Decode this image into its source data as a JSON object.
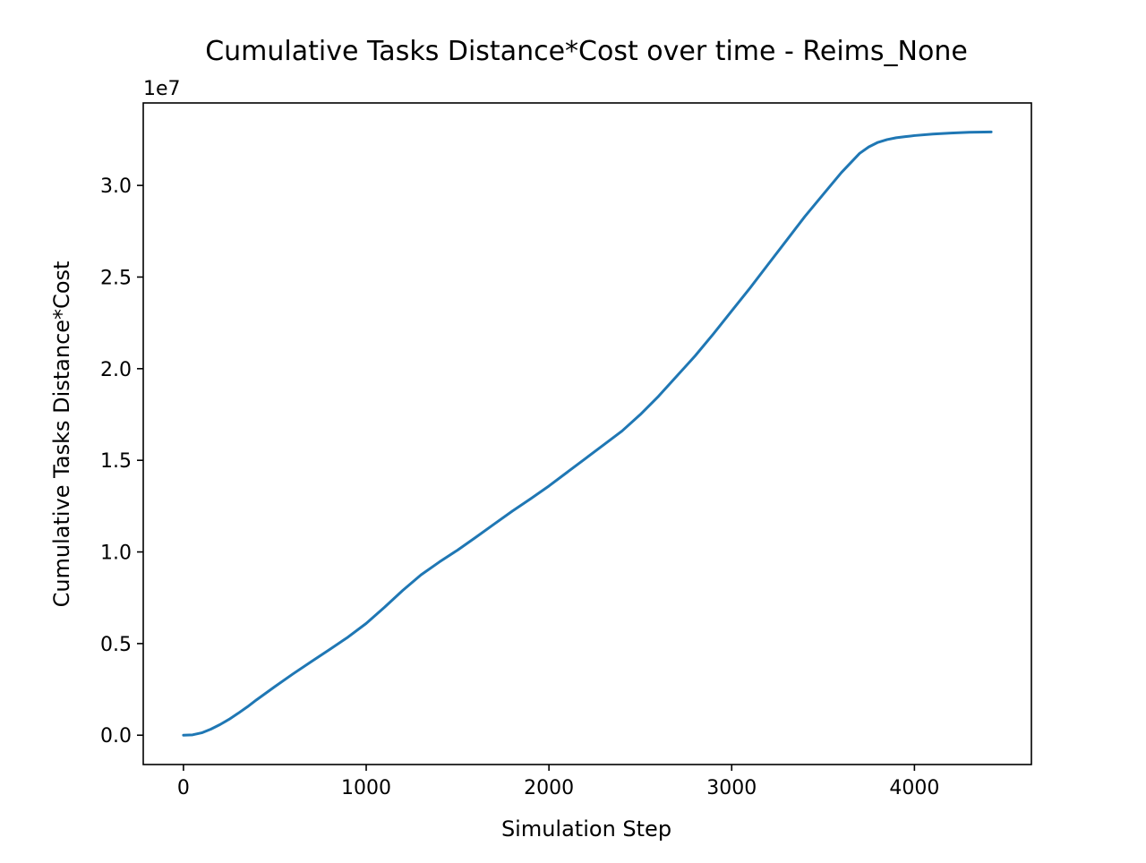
{
  "chart_data": {
    "type": "line",
    "title": "Cumulative Tasks Distance*Cost over time - Reims_None",
    "xlabel": "Simulation Step",
    "ylabel": "Cumulative Tasks Distance*Cost",
    "y_offset_label": "1e7",
    "xlim": [
      -220,
      4640
    ],
    "ylim": [
      -0.16,
      3.45
    ],
    "x_ticks": [
      0,
      1000,
      2000,
      3000,
      4000
    ],
    "x_tick_labels": [
      "0",
      "1000",
      "2000",
      "3000",
      "4000"
    ],
    "y_ticks": [
      0.0,
      0.5,
      1.0,
      1.5,
      2.0,
      2.5,
      3.0
    ],
    "y_tick_labels": [
      "0.0",
      "0.5",
      "1.0",
      "1.5",
      "2.0",
      "2.5",
      "3.0"
    ],
    "grid": false,
    "series": [
      {
        "color": "#1f77b4",
        "x": [
          0,
          50,
          100,
          150,
          200,
          250,
          300,
          350,
          400,
          500,
          600,
          700,
          800,
          900,
          1000,
          1100,
          1200,
          1300,
          1400,
          1500,
          1600,
          1700,
          1800,
          1900,
          2000,
          2100,
          2200,
          2300,
          2400,
          2500,
          2600,
          2700,
          2800,
          2900,
          3000,
          3100,
          3200,
          3300,
          3400,
          3500,
          3600,
          3700,
          3750,
          3800,
          3850,
          3900,
          3950,
          4000,
          4100,
          4200,
          4300,
          4420
        ],
        "y": [
          0.0,
          0.002,
          0.013,
          0.033,
          0.058,
          0.087,
          0.12,
          0.155,
          0.193,
          0.265,
          0.335,
          0.402,
          0.468,
          0.535,
          0.61,
          0.698,
          0.79,
          0.875,
          0.945,
          1.01,
          1.08,
          1.152,
          1.223,
          1.29,
          1.36,
          1.435,
          1.51,
          1.585,
          1.66,
          1.75,
          1.85,
          1.96,
          2.07,
          2.19,
          2.315,
          2.44,
          2.57,
          2.7,
          2.83,
          2.95,
          3.07,
          3.175,
          3.21,
          3.235,
          3.25,
          3.26,
          3.266,
          3.272,
          3.28,
          3.286,
          3.29,
          3.292
        ]
      }
    ]
  }
}
